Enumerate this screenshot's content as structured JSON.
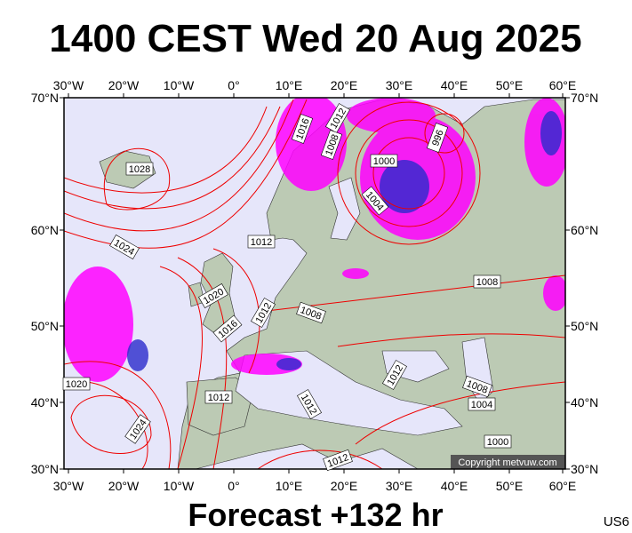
{
  "header": {
    "title": "1400 CEST Wed 20 Aug 2025"
  },
  "map": {
    "lon_labels": [
      "30°W",
      "20°W",
      "10°W",
      "0°",
      "10°E",
      "20°E",
      "30°E",
      "40°E",
      "50°E",
      "60°E"
    ],
    "lat_labels": [
      "70°N",
      "60°N",
      "50°N",
      "40°N",
      "30°N"
    ],
    "isobar_labels": [
      "1028",
      "1024",
      "1024",
      "1020",
      "1020",
      "1016",
      "1012",
      "1012",
      "1016",
      "1012",
      "1008",
      "996",
      "1000",
      "1004",
      "1008",
      "1008",
      "1012",
      "1012",
      "1008",
      "1004",
      "1000",
      "1012",
      "1012"
    ],
    "copyright": "Copyright metvuw.com"
  },
  "footer": {
    "title": "Forecast +132 hr",
    "code": "US6"
  }
}
